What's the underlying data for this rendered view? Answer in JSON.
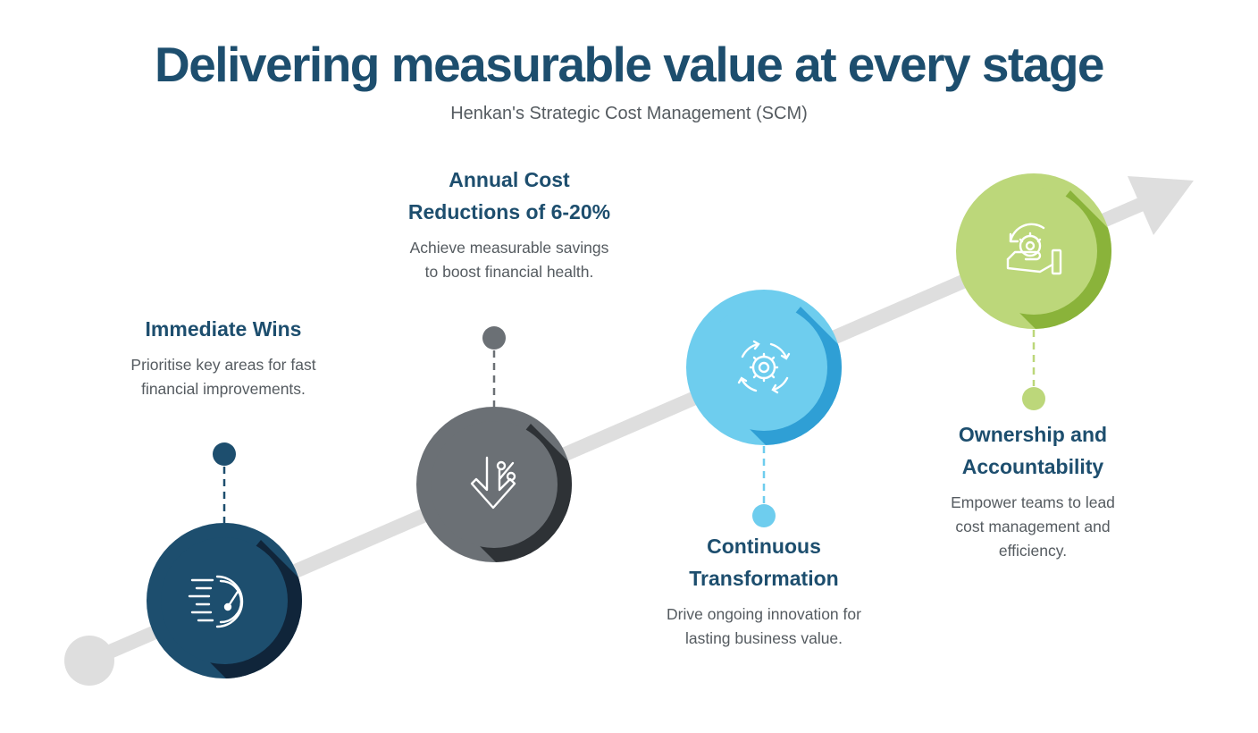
{
  "header": {
    "title": "Delivering measurable value at every stage",
    "subtitle": "Henkan's Strategic Cost Management (SCM)"
  },
  "stages": [
    {
      "title": "Immediate Wins",
      "description": "Prioritise key areas for fast\nfinancial improvements.",
      "icon": "speedometer-icon",
      "color": "#1d4e6e"
    },
    {
      "title": "Annual Cost\nReductions of 6-20%",
      "description": "Achieve measurable savings\nto boost financial health.",
      "icon": "percent-down-arrow-icon",
      "color": "#6b7075"
    },
    {
      "title": "Continuous\nTransformation",
      "description": "Drive ongoing innovation for\nlasting business value.",
      "icon": "gear-cycle-icon",
      "color": "#6ecdee"
    },
    {
      "title": "Ownership and\nAccountability",
      "description": "Empower teams to lead\ncost management and\nefficiency.",
      "icon": "hand-gear-icon",
      "color": "#bcd77a"
    }
  ]
}
